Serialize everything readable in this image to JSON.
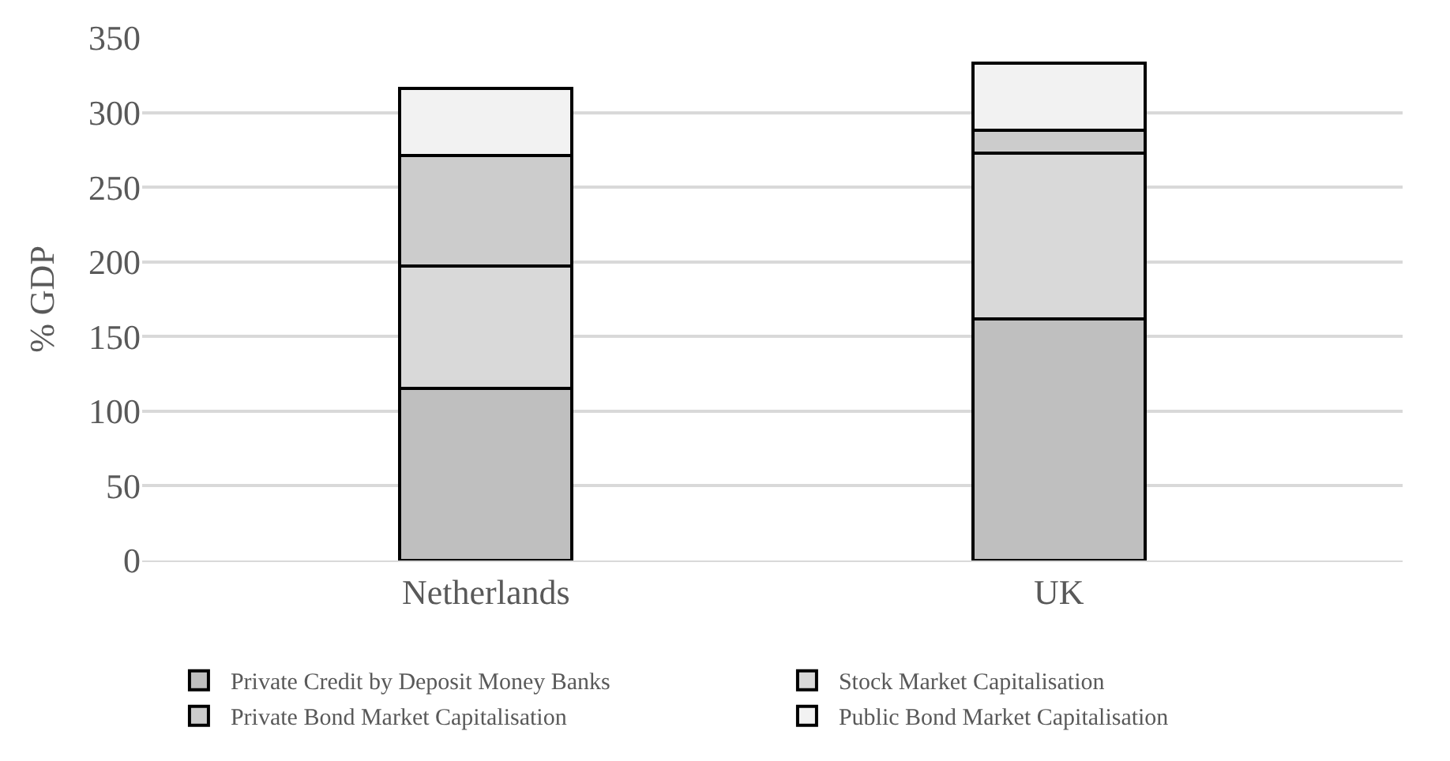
{
  "chart_data": {
    "type": "bar",
    "stacked": true,
    "ylabel": "% GDP",
    "categories": [
      "Netherlands",
      "UK"
    ],
    "series": [
      {
        "name": "Private Credit by Deposit Money Banks",
        "color": "#bfbfbf",
        "values": [
          115,
          162
        ]
      },
      {
        "name": "Stock Market Capitalisation",
        "color": "#d9d9d9",
        "values": [
          82,
          111
        ]
      },
      {
        "name": "Private Bond Market Capitalisation",
        "color": "#cccccc",
        "values": [
          74,
          15
        ]
      },
      {
        "name": "Public Bond Market Capitalisation",
        "color": "#f2f2f2",
        "values": [
          45,
          45
        ]
      }
    ],
    "ylim": [
      0,
      350
    ],
    "yticks": [
      0,
      50,
      100,
      150,
      200,
      250,
      300,
      350
    ],
    "grid": "y",
    "legend": "bottom"
  }
}
